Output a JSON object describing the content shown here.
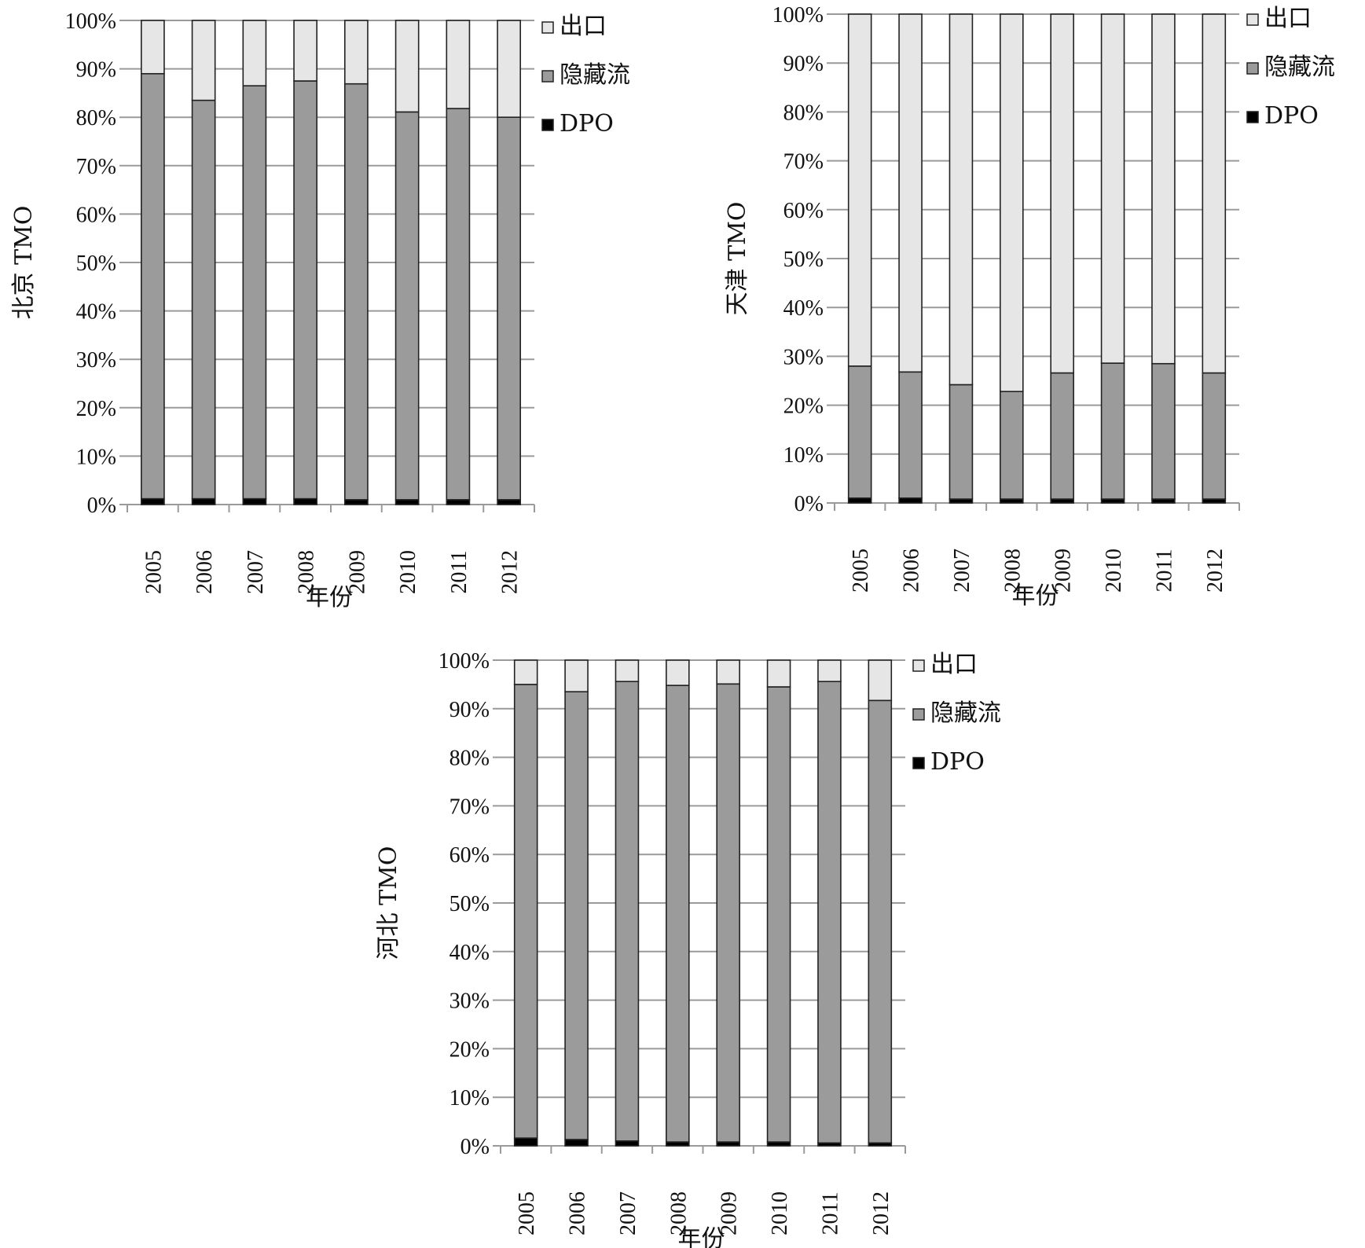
{
  "colors": {
    "export": "#e6e6e6",
    "hidden": "#9b9b9b",
    "dpo": "#000000",
    "grid": "#9a9a9a"
  },
  "chart_data": [
    {
      "type": "bar",
      "stacked": true,
      "ylabel": "北京 TMO",
      "xlabel": "年份",
      "categories": [
        "2005",
        "2006",
        "2007",
        "2008",
        "2009",
        "2010",
        "2011",
        "2012"
      ],
      "yticks": [
        "0%",
        "10%",
        "20%",
        "30%",
        "40%",
        "50%",
        "60%",
        "70%",
        "80%",
        "90%",
        "100%"
      ],
      "ylim": [
        0,
        100
      ],
      "grid": true,
      "legend_position": "right-top",
      "series": [
        {
          "name": "DPO",
          "values": [
            1.2,
            1.2,
            1.2,
            1.2,
            1.0,
            1.0,
            1.0,
            1.0
          ]
        },
        {
          "name": "隐藏流",
          "values": [
            87.8,
            82.3,
            85.3,
            86.3,
            85.9,
            80.1,
            80.8,
            79.0
          ]
        },
        {
          "name": "出口",
          "values": [
            11.0,
            16.5,
            13.5,
            12.5,
            13.1,
            18.9,
            18.2,
            20.0
          ]
        }
      ]
    },
    {
      "type": "bar",
      "stacked": true,
      "ylabel": "天津 TMO",
      "xlabel": "年份",
      "categories": [
        "2005",
        "2006",
        "2007",
        "2008",
        "2009",
        "2010",
        "2011",
        "2012"
      ],
      "yticks": [
        "0%",
        "10%",
        "20%",
        "30%",
        "40%",
        "50%",
        "60%",
        "70%",
        "80%",
        "90%",
        "100%"
      ],
      "ylim": [
        0,
        100
      ],
      "grid": true,
      "legend_position": "right-top",
      "series": [
        {
          "name": "DPO",
          "values": [
            1.0,
            1.0,
            0.8,
            0.8,
            0.8,
            0.8,
            0.8,
            0.8
          ]
        },
        {
          "name": "隐藏流",
          "values": [
            27.0,
            25.8,
            23.4,
            22.0,
            25.8,
            27.8,
            27.7,
            25.8
          ]
        },
        {
          "name": "出口",
          "values": [
            72.0,
            73.2,
            75.8,
            77.2,
            73.4,
            71.4,
            71.5,
            73.4
          ]
        }
      ]
    },
    {
      "type": "bar",
      "stacked": true,
      "ylabel": "河北 TMO",
      "xlabel": "年份",
      "categories": [
        "2005",
        "2006",
        "2007",
        "2008",
        "2009",
        "2010",
        "2011",
        "2012"
      ],
      "yticks": [
        "0%",
        "10%",
        "20%",
        "30%",
        "40%",
        "50%",
        "60%",
        "70%",
        "80%",
        "90%",
        "100%"
      ],
      "ylim": [
        0,
        100
      ],
      "grid": true,
      "legend_position": "right-top",
      "series": [
        {
          "name": "DPO",
          "values": [
            1.6,
            1.3,
            1.0,
            0.8,
            0.8,
            0.8,
            0.6,
            0.6
          ]
        },
        {
          "name": "隐藏流",
          "values": [
            93.4,
            92.2,
            94.6,
            94.0,
            94.3,
            93.7,
            95.0,
            91.1
          ]
        },
        {
          "name": "出口",
          "values": [
            5.0,
            6.5,
            4.4,
            5.2,
            4.9,
            5.5,
            4.4,
            8.3
          ]
        }
      ]
    }
  ]
}
